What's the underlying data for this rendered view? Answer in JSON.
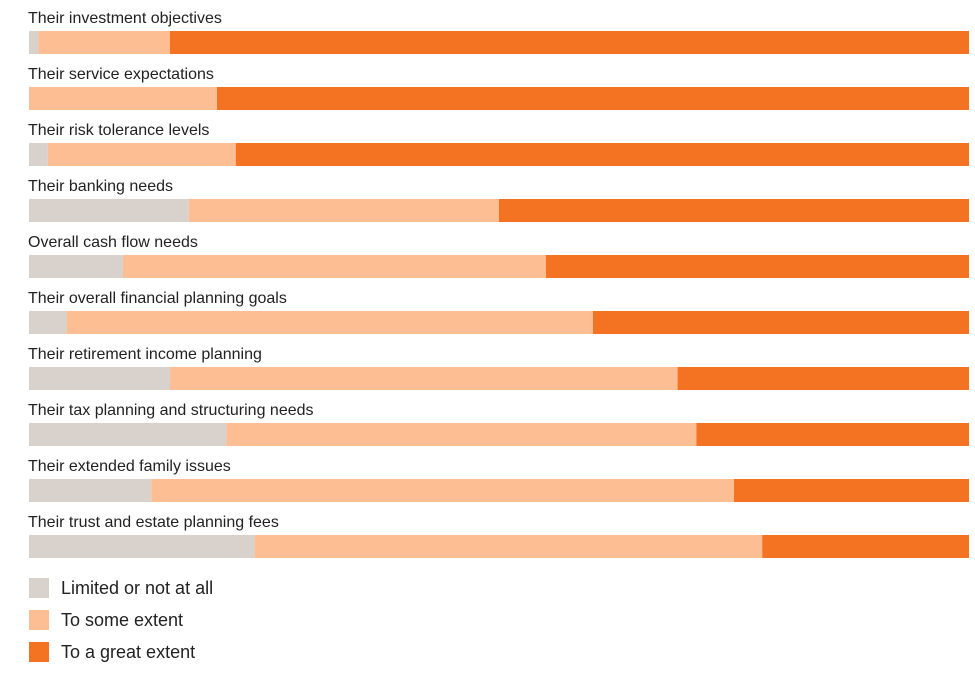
{
  "chart_data": {
    "type": "bar",
    "orientation": "horizontal",
    "stacked": true,
    "normalized_percent": true,
    "categories": [
      "Their investment objectives",
      "Their service expectations",
      "Their risk tolerance levels",
      "Their banking needs",
      "Overall cash flow needs",
      "Their overall financial planning goals",
      "Their retirement income planning",
      "Their tax planning and structuring needs",
      "Their extended family issues",
      "Their trust and estate planning fees"
    ],
    "series": [
      {
        "name": "Limited or not at all",
        "color": "#d9d2cc",
        "values": [
          1,
          0,
          2,
          17,
          10,
          4,
          15,
          21,
          13,
          24
        ]
      },
      {
        "name": "To some extent",
        "color": "#fdbe94",
        "values": [
          14,
          20,
          20,
          33,
          45,
          56,
          54,
          50,
          62,
          54
        ]
      },
      {
        "name": "To a great extent",
        "color": "#f47323",
        "values": [
          85,
          80,
          78,
          50,
          45,
          40,
          31,
          29,
          25,
          22
        ]
      }
    ],
    "xlim": [
      0,
      100
    ],
    "legend": "bottom-left",
    "grid": false
  }
}
